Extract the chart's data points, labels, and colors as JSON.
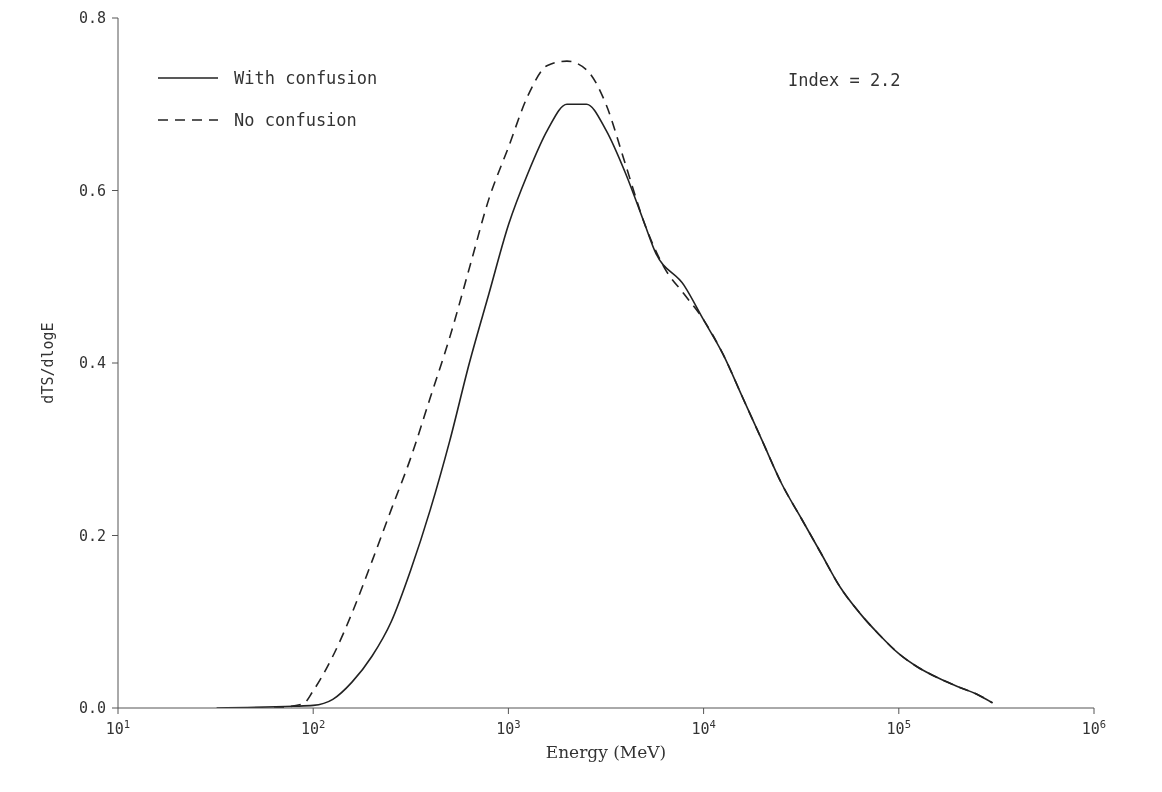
{
  "chart_data": {
    "type": "line",
    "xlabel": "Energy (MeV)",
    "ylabel": "dTS/dlogE",
    "log": "x",
    "xlim": [
      10,
      1000000
    ],
    "xticks": [
      {
        "value": 10,
        "label": "10$^{1}$"
      },
      {
        "value": 100,
        "label": "10$^{2}$"
      },
      {
        "value": 1000,
        "label": "10$^{3}$"
      },
      {
        "value": 10000,
        "label": "10$^{4}$"
      },
      {
        "value": 100000,
        "label": "10$^{5}$"
      },
      {
        "value": 1000000,
        "label": "10$^{6}$"
      }
    ],
    "ylim": [
      0,
      0.8
    ],
    "yticks": [
      {
        "value": 0,
        "label": "0.0"
      },
      {
        "value": 0.2,
        "label": "0.2"
      },
      {
        "value": 0.4,
        "label": "0.4"
      },
      {
        "value": 0.6,
        "label": "0.6"
      },
      {
        "value": 0.8,
        "label": "0.8"
      }
    ],
    "legend": "top left",
    "marker": "none",
    "annotations": [
      "Index = 2.2"
    ],
    "series": [
      {
        "name": "With confusion",
        "color": "#222222",
        "line_style": "solid",
        "x": [
          32,
          79,
          100,
          126,
          158,
          200,
          251,
          316,
          398,
          501,
          631,
          794,
          1000,
          1259,
          1585,
          1995,
          2512,
          3162,
          3981,
          5012,
          5623,
          7943,
          10000,
          12589,
          15849,
          19953,
          25119,
          31623,
          39811,
          50119,
          63096,
          79433,
          100000,
          125893,
          158489,
          199526,
          251189,
          301995
        ],
        "values": [
          0,
          0.002,
          0.003,
          0.01,
          0.03,
          0.06,
          0.1,
          0.16,
          0.23,
          0.31,
          0.4,
          0.48,
          0.56,
          0.62,
          0.67,
          0.7,
          0.7,
          0.67,
          0.62,
          0.56,
          0.53,
          0.49,
          0.45,
          0.41,
          0.36,
          0.31,
          0.26,
          0.22,
          0.18,
          0.14,
          0.11,
          0.085,
          0.063,
          0.047,
          0.035,
          0.025,
          0.016,
          0.006
        ]
      },
      {
        "name": "No confusion",
        "color": "#222222",
        "line_style": "dashed",
        "x": [
          63,
          89,
          100,
          126,
          158,
          200,
          251,
          316,
          398,
          501,
          631,
          794,
          1000,
          1259,
          1585,
          1995,
          2512,
          3162,
          3981,
          5012,
          6310,
          7943,
          10000,
          12589,
          15849,
          19953,
          25119,
          31623,
          39811,
          50119,
          63096,
          79433,
          100000,
          125893,
          158489,
          199526,
          251189,
          301995
        ],
        "values": [
          0,
          0.005,
          0.02,
          0.06,
          0.11,
          0.17,
          0.23,
          0.29,
          0.36,
          0.43,
          0.51,
          0.59,
          0.65,
          0.71,
          0.745,
          0.75,
          0.74,
          0.7,
          0.63,
          0.56,
          0.51,
          0.48,
          0.45,
          0.41,
          0.36,
          0.31,
          0.26,
          0.22,
          0.18,
          0.14,
          0.11,
          0.085,
          0.063,
          0.047,
          0.035,
          0.025,
          0.016,
          0.006
        ]
      }
    ]
  }
}
